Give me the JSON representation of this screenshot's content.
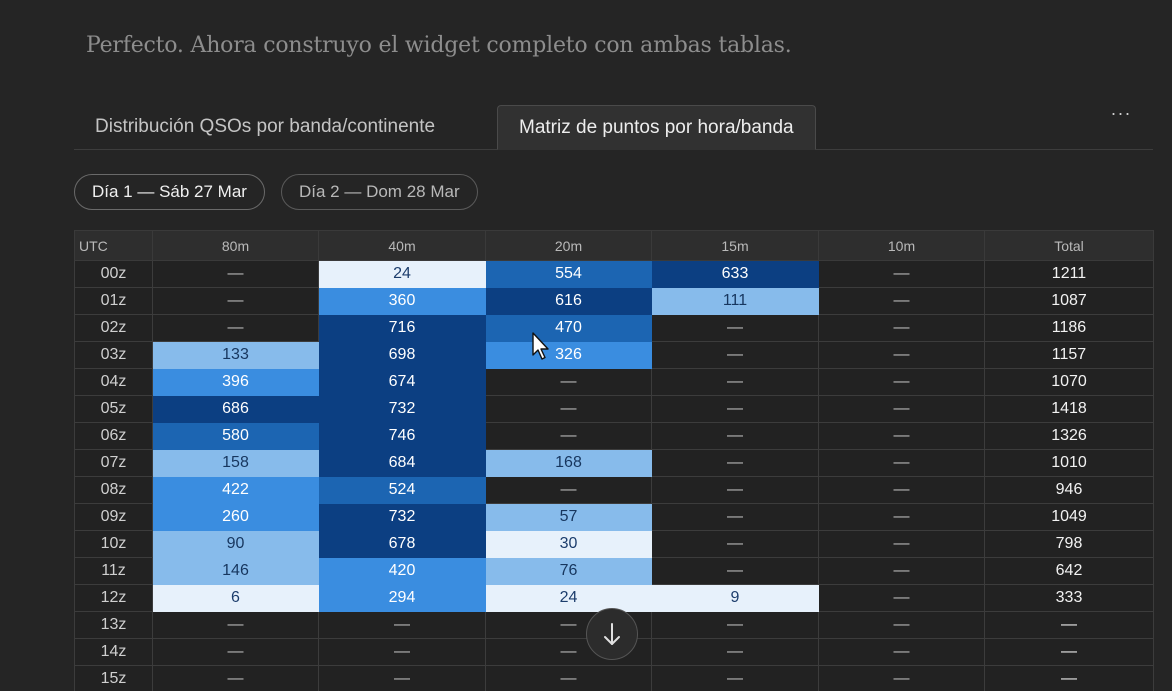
{
  "intro_text": "Perfecto. Ahora construyo el widget completo con ambas tablas.",
  "tabs": [
    {
      "label": "Distribución QSOs por banda/continente",
      "active": false
    },
    {
      "label": "Matriz de puntos por hora/banda",
      "active": true
    }
  ],
  "more_menu_label": "···",
  "day_pills": [
    {
      "label": "Día 1 — Sáb 27 Mar",
      "active": true
    },
    {
      "label": "Día 2 — Dom 28 Mar",
      "active": false
    }
  ],
  "matrix": {
    "columns": [
      "UTC",
      "80m",
      "40m",
      "20m",
      "15m",
      "10m",
      "Total"
    ],
    "rows": [
      {
        "hour": "00z",
        "cells": [
          "—",
          "24",
          "554",
          "633",
          "—"
        ],
        "total": "1211"
      },
      {
        "hour": "01z",
        "cells": [
          "—",
          "360",
          "616",
          "111",
          "—"
        ],
        "total": "1087"
      },
      {
        "hour": "02z",
        "cells": [
          "—",
          "716",
          "470",
          "—",
          "—"
        ],
        "total": "1186"
      },
      {
        "hour": "03z",
        "cells": [
          "133",
          "698",
          "326",
          "—",
          "—"
        ],
        "total": "1157"
      },
      {
        "hour": "04z",
        "cells": [
          "396",
          "674",
          "—",
          "—",
          "—"
        ],
        "total": "1070"
      },
      {
        "hour": "05z",
        "cells": [
          "686",
          "732",
          "—",
          "—",
          "—"
        ],
        "total": "1418"
      },
      {
        "hour": "06z",
        "cells": [
          "580",
          "746",
          "—",
          "—",
          "—"
        ],
        "total": "1326"
      },
      {
        "hour": "07z",
        "cells": [
          "158",
          "684",
          "168",
          "—",
          "—"
        ],
        "total": "1010"
      },
      {
        "hour": "08z",
        "cells": [
          "422",
          "524",
          "—",
          "—",
          "—"
        ],
        "total": "946"
      },
      {
        "hour": "09z",
        "cells": [
          "260",
          "732",
          "57",
          "—",
          "—"
        ],
        "total": "1049"
      },
      {
        "hour": "10z",
        "cells": [
          "90",
          "678",
          "30",
          "—",
          "—"
        ],
        "total": "798"
      },
      {
        "hour": "11z",
        "cells": [
          "146",
          "420",
          "76",
          "—",
          "—"
        ],
        "total": "642"
      },
      {
        "hour": "12z",
        "cells": [
          "6",
          "294",
          "24",
          "9",
          "—"
        ],
        "total": "333"
      },
      {
        "hour": "13z",
        "cells": [
          "—",
          "—",
          "—",
          "—",
          "—"
        ],
        "total": "—"
      },
      {
        "hour": "14z",
        "cells": [
          "—",
          "—",
          "—",
          "—",
          "—"
        ],
        "total": "—"
      },
      {
        "hour": "15z",
        "cells": [
          "—",
          "—",
          "—",
          "—",
          "—"
        ],
        "total": "—"
      }
    ],
    "heat_colors": [
      "#e7f1fb",
      "#87bbeb",
      "#3a8de0",
      "#1c65b2",
      "#0c3f82"
    ]
  },
  "scroll_down_icon": "arrow-down-icon",
  "cursor_icon": "mouse-pointer-icon"
}
